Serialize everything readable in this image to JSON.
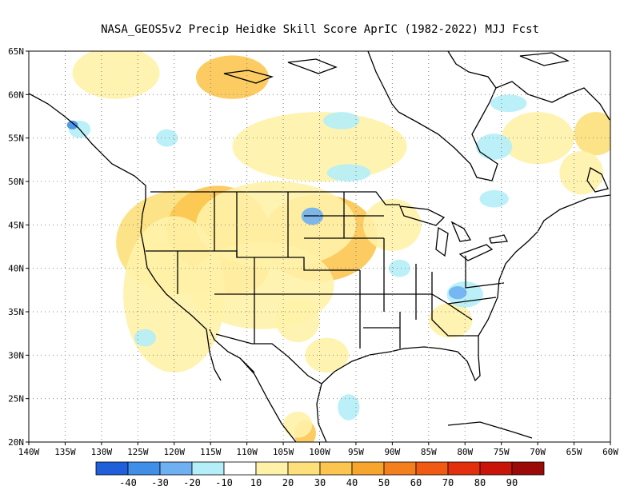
{
  "title": "NASA_GEOS5v2 Precip Heidke Skill Score AprIC (1982-2022) MJJ Fcst",
  "map": {
    "lat_labels": [
      "65N",
      "60N",
      "55N",
      "50N",
      "45N",
      "40N",
      "35N",
      "30N",
      "25N",
      "20N"
    ],
    "lat_values": [
      65,
      60,
      55,
      50,
      45,
      40,
      35,
      30,
      25,
      20
    ],
    "lon_labels": [
      "140W",
      "135W",
      "130W",
      "125W",
      "120W",
      "115W",
      "110W",
      "105W",
      "100W",
      "95W",
      "90W",
      "85W",
      "80W",
      "75W",
      "70W",
      "65W",
      "60W"
    ],
    "lon_values": [
      -140,
      -135,
      -130,
      -125,
      -120,
      -115,
      -110,
      -105,
      -100,
      -95,
      -90,
      -85,
      -80,
      -75,
      -70,
      -65,
      -60
    ],
    "lon_range": [
      -140,
      -60
    ],
    "lat_range": [
      20,
      65
    ],
    "grid": true
  },
  "colorbar": {
    "colors": [
      "#1f5fd9",
      "#3f8ee8",
      "#6fb0f2",
      "#b4eef8",
      "#ffffff",
      "#fff2a8",
      "#fde07a",
      "#fcc550",
      "#f8a52e",
      "#f47f1d",
      "#f15a12",
      "#e3300c",
      "#c9140a",
      "#9b0a08"
    ],
    "labels": [
      "-40",
      "-30",
      "-20",
      "-10",
      "10",
      "20",
      "30",
      "40",
      "50",
      "60",
      "70",
      "80",
      "90"
    ]
  },
  "anomalies": [
    {
      "lon": -119,
      "lat": 43,
      "rx": 18,
      "ry": 12,
      "color": "#fde07a"
    },
    {
      "lon": -114,
      "lat": 44.5,
      "rx": 14,
      "ry": 10,
      "color": "#fcc550"
    },
    {
      "lon": -112,
      "lat": 40,
      "rx": 10,
      "ry": 6,
      "color": "#fcc550"
    },
    {
      "lon": -100,
      "lat": 43.5,
      "rx": 16,
      "ry": 10,
      "color": "#fcc550"
    },
    {
      "lon": -106,
      "lat": 45,
      "rx": 22,
      "ry": 10,
      "color": "#fff2a8"
    },
    {
      "lon": -120,
      "lat": 37,
      "rx": 14,
      "ry": 18,
      "color": "#fff2a8"
    },
    {
      "lon": -108,
      "lat": 38,
      "rx": 20,
      "ry": 10,
      "color": "#fff2a8"
    },
    {
      "lon": -112,
      "lat": 62,
      "rx": 10,
      "ry": 5,
      "color": "#fcc550"
    },
    {
      "lon": -128,
      "lat": 62.5,
      "rx": 12,
      "ry": 6,
      "color": "#fff2a8"
    },
    {
      "lon": -100,
      "lat": 54,
      "rx": 24,
      "ry": 8,
      "color": "#fff2a8"
    },
    {
      "lon": -70,
      "lat": 55,
      "rx": 10,
      "ry": 6,
      "color": "#fff2a8"
    },
    {
      "lon": -62,
      "lat": 55.5,
      "rx": 6,
      "ry": 5,
      "color": "#fde07a"
    },
    {
      "lon": -64,
      "lat": 51,
      "rx": 6,
      "ry": 5,
      "color": "#fff2a8"
    },
    {
      "lon": -90,
      "lat": 45,
      "rx": 8,
      "ry": 6,
      "color": "#fff2a8"
    },
    {
      "lon": -103,
      "lat": 34,
      "rx": 6,
      "ry": 5,
      "color": "#fff2a8"
    },
    {
      "lon": -99,
      "lat": 30,
      "rx": 6,
      "ry": 4,
      "color": "#fff2a8"
    },
    {
      "lon": -102,
      "lat": 21,
      "rx": 3,
      "ry": 3,
      "color": "#fcc550"
    },
    {
      "lon": -103,
      "lat": 22,
      "rx": 4,
      "ry": 3,
      "color": "#fff2a8"
    },
    {
      "lon": -82,
      "lat": 34,
      "rx": 6,
      "ry": 4,
      "color": "#fff2a8"
    },
    {
      "lon": -80,
      "lat": 37,
      "rx": 5,
      "ry": 3,
      "color": "#b4eef8"
    },
    {
      "lon": -81,
      "lat": 37.2,
      "rx": 2.5,
      "ry": 1.5,
      "color": "#6fb0f2"
    },
    {
      "lon": -133,
      "lat": 56,
      "rx": 3,
      "ry": 2,
      "color": "#b4eef8"
    },
    {
      "lon": -134,
      "lat": 56.5,
      "rx": 1.5,
      "ry": 1,
      "color": "#3f8ee8"
    },
    {
      "lon": -76,
      "lat": 54,
      "rx": 5,
      "ry": 3,
      "color": "#b4eef8"
    },
    {
      "lon": -96,
      "lat": 51,
      "rx": 6,
      "ry": 2,
      "color": "#b4eef8"
    },
    {
      "lon": -97,
      "lat": 57,
      "rx": 5,
      "ry": 2,
      "color": "#b4eef8"
    },
    {
      "lon": -74,
      "lat": 59,
      "rx": 5,
      "ry": 2,
      "color": "#b4eef8"
    },
    {
      "lon": -76,
      "lat": 48,
      "rx": 4,
      "ry": 2,
      "color": "#b4eef8"
    },
    {
      "lon": -101,
      "lat": 46,
      "rx": 3,
      "ry": 2,
      "color": "#6fb0f2"
    },
    {
      "lon": -96,
      "lat": 24,
      "rx": 3,
      "ry": 3,
      "color": "#b4eef8"
    },
    {
      "lon": -124,
      "lat": 32,
      "rx": 3,
      "ry": 2,
      "color": "#b4eef8"
    },
    {
      "lon": -89,
      "lat": 40,
      "rx": 3,
      "ry": 2,
      "color": "#b4eef8"
    },
    {
      "lon": -121,
      "lat": 55,
      "rx": 3,
      "ry": 2,
      "color": "#b4eef8"
    }
  ]
}
